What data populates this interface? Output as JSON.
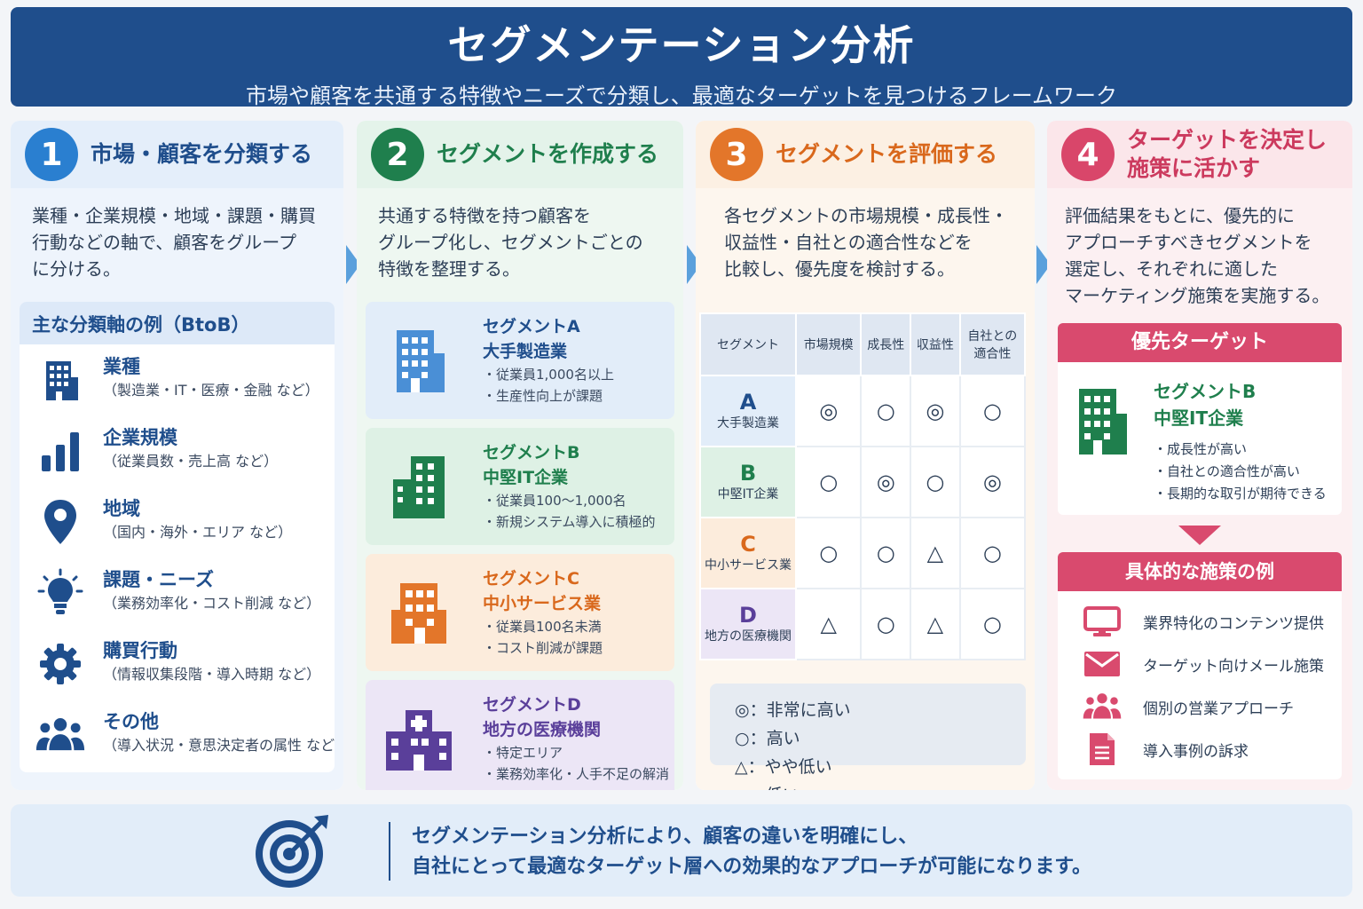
{
  "header": {
    "title": "セグメンテーション分析",
    "subtitle": "市場や顧客を共通する特徴やニーズで分類し、最適なターゲットを見つけるフレームワーク"
  },
  "step1": {
    "number": "1",
    "title": "市場・顧客を分類する",
    "desc": [
      "業種・企業規模・地域・課題・購買",
      "行動などの軸で、顧客をグループ",
      "に分ける。"
    ],
    "axes_title": "主な分類軸の例（BtoB）",
    "axes": [
      {
        "name": "業種",
        "detail": "（製造業・IT・医療・金融 など）",
        "icon": "building-icon"
      },
      {
        "name": "企業規模",
        "detail": "（従業員数・売上高 など）",
        "icon": "bar-chart-icon"
      },
      {
        "name": "地域",
        "detail": "（国内・海外・エリア など）",
        "icon": "map-pin-icon"
      },
      {
        "name": "課題・ニーズ",
        "detail": "（業務効率化・コスト削減 など）",
        "icon": "lightbulb-icon"
      },
      {
        "name": "購買行動",
        "detail": "（情報収集段階・導入時期 など）",
        "icon": "gear-icon"
      },
      {
        "name": "その他",
        "detail": "（導入状況・意思決定者の属性 など）",
        "icon": "people-icon"
      }
    ]
  },
  "step2": {
    "number": "2",
    "title": "セグメントを作成する",
    "desc": [
      "共通する特徴を持つ顧客を",
      "グループ化し、セグメントごとの",
      "特徴を整理する。"
    ],
    "segments": [
      {
        "name1": "セグメントA",
        "name2": "大手製造業",
        "bullets": [
          "・従業員1,000名以上",
          "・生産性向上が課題"
        ],
        "color": "#4a8fd6"
      },
      {
        "name1": "セグメントB",
        "name2": "中堅IT企業",
        "bullets": [
          "・従業員100〜1,000名",
          "・新規システム導入に積極的"
        ],
        "color": "#1f7f4d"
      },
      {
        "name1": "セグメントC",
        "name2": "中小サービス業",
        "bullets": [
          "・従業員100名未満",
          "・コスト削減が課題"
        ],
        "color": "#e3762a"
      },
      {
        "name1": "セグメントD",
        "name2": "地方の医療機関",
        "bullets": [
          "・特定エリア",
          "・業務効率化・人手不足の解消"
        ],
        "color": "#5a3f9a"
      }
    ]
  },
  "step3": {
    "number": "3",
    "title": "セグメントを評価する",
    "desc": [
      "各セグメントの市場規模・成長性・",
      "収益性・自社との適合性などを",
      "比較し、優先度を検討する。"
    ],
    "table": {
      "headers": [
        "セグメント",
        "市場規模",
        "成長性",
        "収益性",
        "自社との",
        "適合性"
      ],
      "rows": [
        {
          "letter": "A",
          "label": "大手製造業",
          "cells": [
            "◎",
            "○",
            "◎",
            "○"
          ]
        },
        {
          "letter": "B",
          "label": "中堅IT企業",
          "cells": [
            "○",
            "◎",
            "○",
            "◎"
          ]
        },
        {
          "letter": "C",
          "label": "中小サービス業",
          "cells": [
            "○",
            "○",
            "△",
            "○"
          ]
        },
        {
          "letter": "D",
          "label": "地方の医療機関",
          "cells": [
            "△",
            "○",
            "△",
            "○"
          ]
        }
      ]
    },
    "legend": [
      "◎：非常に高い",
      "○：高い",
      "△：やや低い",
      "×：低い"
    ]
  },
  "step4": {
    "number": "4",
    "title1": "ターゲットを決定し",
    "title2": "施策に活かす",
    "desc": [
      "評価結果をもとに、優先的に",
      "アプローチすべきセグメントを",
      "選定し、それぞれに適した",
      "マーケティング施策を実施する。"
    ],
    "priority_title": "優先ターゲット",
    "priority_name1": "セグメントB",
    "priority_name2": "中堅IT企業",
    "priority_bullets": [
      "・成長性が高い",
      "・自社との適合性が高い",
      "・長期的な取引が期待できる"
    ],
    "tactics_title": "具体的な施策の例",
    "tactics": [
      {
        "text": "業界特化のコンテンツ提供",
        "icon": "monitor-icon"
      },
      {
        "text": "ターゲット向けメール施策",
        "icon": "mail-icon"
      },
      {
        "text": "個別の営業アプローチ",
        "icon": "people-icon"
      },
      {
        "text": "導入事例の訴求",
        "icon": "document-icon"
      }
    ]
  },
  "footer": {
    "line1": "セグメンテーション分析により、顧客の違いを明確にし、",
    "line2": "自社にとって最適なターゲット層への効果的なアプローチが可能になります。"
  }
}
